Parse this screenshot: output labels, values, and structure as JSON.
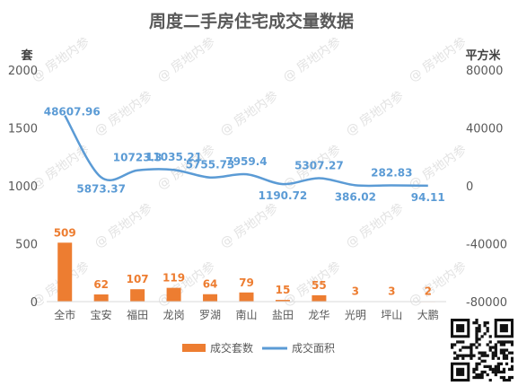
{
  "chart_data": {
    "type": "bar+line",
    "title": "周度二手房住宅成交量数据",
    "left_axis_unit": "套",
    "right_axis_unit": "平方米",
    "categories": [
      "全市",
      "宝安",
      "福田",
      "龙岗",
      "罗湖",
      "南山",
      "盐田",
      "龙华",
      "光明",
      "坪山",
      "大鹏"
    ],
    "series": [
      {
        "name": "成交套数",
        "type": "bar",
        "axis": "left",
        "color": "#ED7D31",
        "values": [
          509,
          62,
          107,
          119,
          64,
          79,
          15,
          55,
          3,
          3,
          2
        ],
        "labels": [
          "509",
          "62",
          "107",
          "119",
          "64",
          "79",
          "15",
          "55",
          "3",
          "3",
          "2"
        ]
      },
      {
        "name": "成交面积",
        "type": "line",
        "axis": "right",
        "color": "#5B9BD5",
        "values": [
          48607.96,
          5873.37,
          10723.3,
          11035.21,
          5755.73,
          7959.4,
          1190.72,
          5307.27,
          386.02,
          282.83,
          94.11
        ],
        "labels": [
          "48607.96",
          "5873.37",
          "10723.3",
          "11035.21",
          "5755.73",
          "7959.4",
          "1190.72",
          "5307.27",
          "386.02",
          "282.83",
          "94.11"
        ]
      }
    ],
    "left_axis": {
      "min": 0,
      "max": 2000,
      "ticks": [
        0,
        500,
        1000,
        1500,
        2000
      ]
    },
    "right_axis": {
      "min": -80000,
      "max": 80000,
      "ticks": [
        -80000,
        -40000,
        0,
        40000,
        80000
      ]
    },
    "legend_position": "bottom",
    "watermark": "房地内参",
    "colors": {
      "bar": "#ED7D31",
      "line": "#5B9BD5",
      "axis_text": "#595959",
      "title": "#595959",
      "grid": "#D9D9D9"
    }
  }
}
